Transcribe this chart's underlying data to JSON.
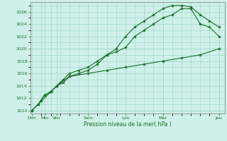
{
  "xlabel": "Pression niveau de la mer( hPa )",
  "background_color": "#cef0e8",
  "grid_color": "#9dd4c8",
  "line_color": "#1a6b2a",
  "ylim": [
    1009.5,
    1027.5
  ],
  "yticks": [
    1010,
    1012,
    1014,
    1016,
    1018,
    1020,
    1022,
    1024,
    1026
  ],
  "line1_x": [
    0,
    0.33,
    0.67,
    1.0,
    1.33,
    1.67,
    2.0,
    2.5,
    3.0,
    3.5,
    4.0,
    4.5,
    5.0,
    5.5,
    6.0,
    6.5,
    7.0,
    7.5,
    8.0,
    8.5,
    9.0,
    9.5,
    10.0
  ],
  "line1_y": [
    1010,
    1011,
    1012.5,
    1013,
    1014,
    1014.5,
    1015.5,
    1016,
    1016.5,
    1017.5,
    1019,
    1019.5,
    1020.2,
    1022,
    1023,
    1024,
    1025,
    1025.5,
    1026.5,
    1026.5,
    1024,
    1023.5,
    1022
  ],
  "line2_x": [
    0,
    0.33,
    0.67,
    1.0,
    1.33,
    1.67,
    2.0,
    2.5,
    3.0,
    3.5,
    4.0,
    4.5,
    5.0,
    5.5,
    6.0,
    6.5,
    7.0,
    7.5,
    8.0,
    8.5,
    9.0,
    9.5,
    10.0
  ],
  "line2_y": [
    1010,
    1011,
    1012.5,
    1013,
    1014,
    1015,
    1016,
    1016.5,
    1017,
    1018,
    1019,
    1020,
    1022,
    1023.5,
    1024.5,
    1025.5,
    1026.5,
    1027,
    1027,
    1026.8,
    1025.5,
    1024.5,
    1023.5
  ],
  "line3_x": [
    0,
    0.5,
    1.0,
    1.5,
    2.0,
    3.0,
    4.0,
    5.0,
    6.0,
    7.0,
    8.0,
    9.0,
    10.0
  ],
  "line3_y": [
    1010,
    1011.5,
    1013,
    1014.5,
    1015.5,
    1016,
    1016.5,
    1017,
    1017.5,
    1018,
    1018.5,
    1019,
    1020
  ],
  "xtick_pos": [
    0,
    0.67,
    1.33,
    3.0,
    5.0,
    7.0,
    10.0
  ],
  "xtick_labels": [
    "Dim",
    "Mer",
    "Ven",
    "Sam",
    "Lun",
    "Mar",
    "Jeu"
  ]
}
